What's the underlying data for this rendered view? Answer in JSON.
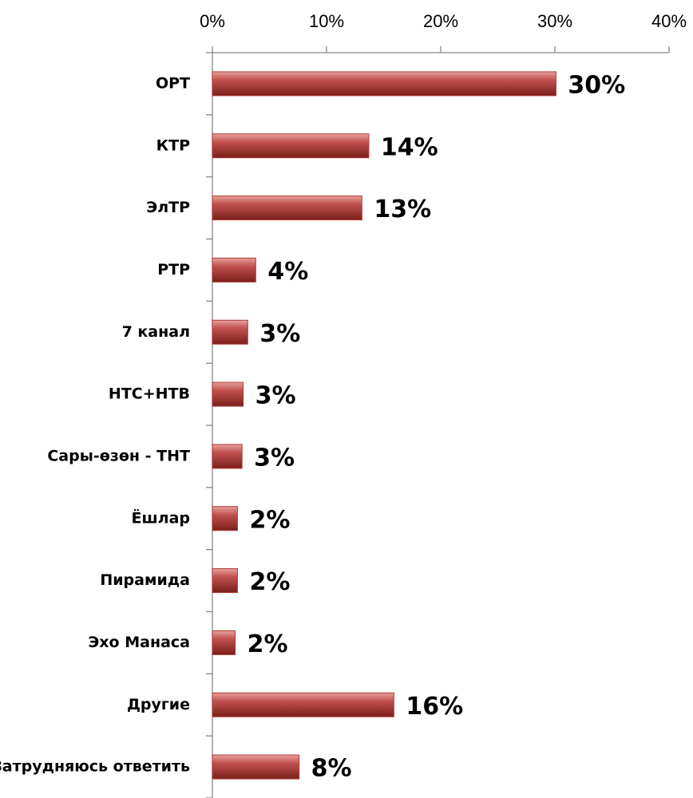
{
  "chart_data": {
    "type": "barh",
    "categories": [
      "ОРТ",
      "КТР",
      "ЭлТР",
      "РТР",
      "7 канал",
      "НТС+НТВ",
      "Сары-өзөн - ТНТ",
      "Ёшлар",
      "Пирамида",
      "Эхо Манаса",
      "Другие",
      "Затрудняюсь ответить"
    ],
    "values": [
      30.1,
      13.7,
      13.1,
      3.8,
      3.1,
      2.7,
      2.6,
      2.2,
      2.2,
      2.0,
      15.9,
      7.6
    ],
    "value_labels": [
      "30%",
      "14%",
      "13%",
      "4%",
      "3%",
      "3%",
      "3%",
      "2%",
      "2%",
      "2%",
      "16%",
      "8%"
    ],
    "color": "#b03a36",
    "xlim": [
      0,
      40
    ],
    "xticks": [
      {
        "value": 0,
        "label": "0%"
      },
      {
        "value": 10,
        "label": "10%"
      },
      {
        "value": 20,
        "label": "20%"
      },
      {
        "value": 30,
        "label": "30%"
      },
      {
        "value": 40,
        "label": "40%"
      }
    ]
  }
}
